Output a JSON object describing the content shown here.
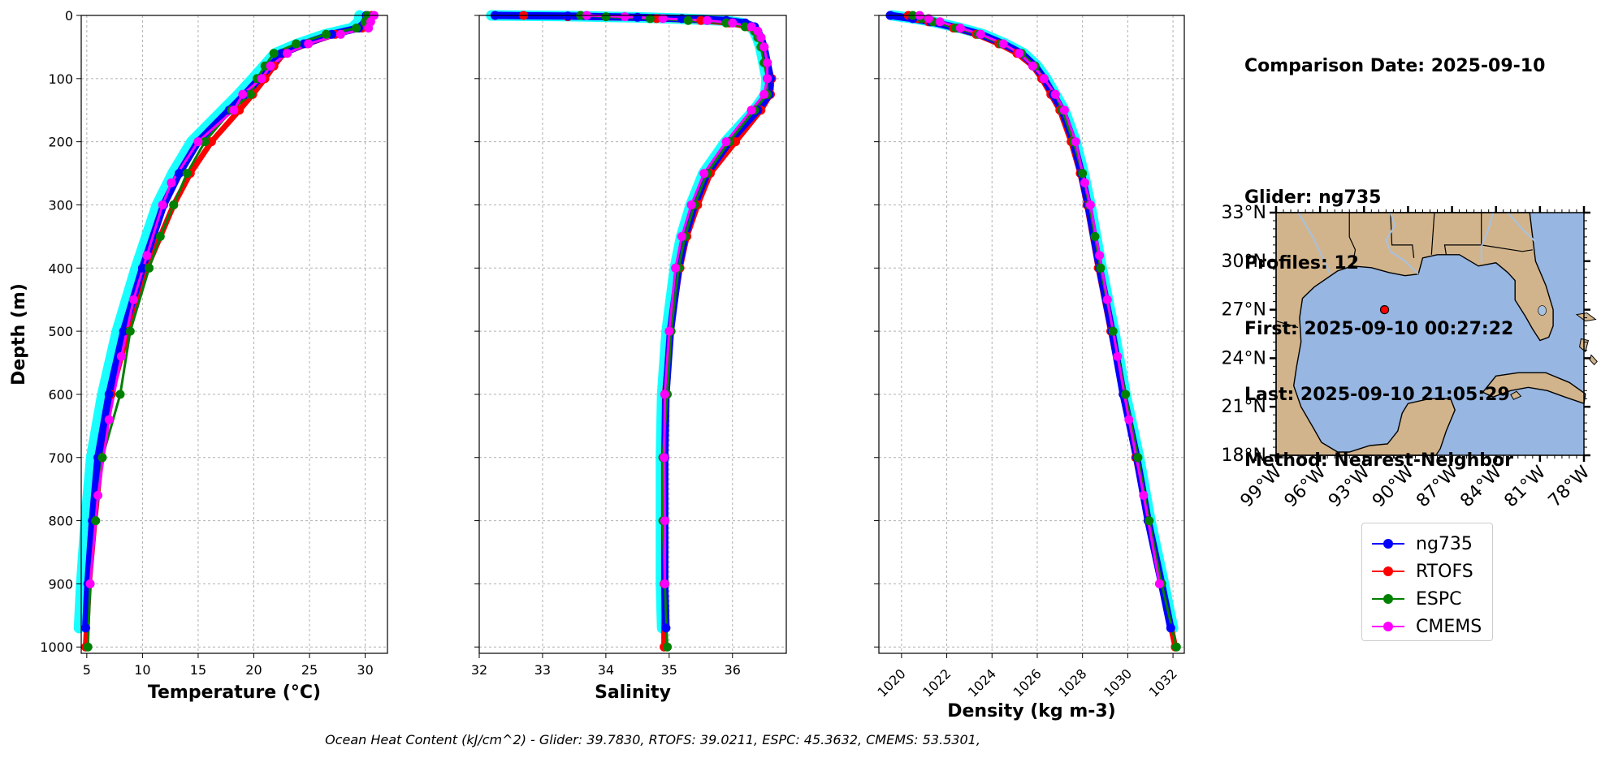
{
  "info": {
    "lines": [
      "Comparison Date: 2025-09-10",
      "",
      "Glider: ng735",
      "Profiles: 12",
      "First: 2025-09-10 00:27:22",
      "Last: 2025-09-10 21:05:29",
      "Method: Nearest-Neighbor"
    ]
  },
  "footnote": "Ocean Heat Content (kJ/cm^2) - Glider: 39.7830,  RTOFS: 39.0211,  ESPC: 45.3632,  CMEMS: 53.5301,",
  "colors": {
    "ng735": "#0000ff",
    "RTOFS": "#ff0000",
    "ESPC": "#008000",
    "CMEMS": "#ff00ff",
    "profiles_envelope": "#00ffff",
    "land": "#d2b48c",
    "ocean": "#97b6e1"
  },
  "legend": [
    "ng735",
    "RTOFS",
    "ESPC",
    "CMEMS"
  ],
  "chart_data": [
    {
      "type": "line",
      "xlabel": "Temperature (°C)",
      "ylabel": "Depth (m)",
      "xlim": [
        4.5,
        32
      ],
      "ylim": [
        1010,
        0
      ],
      "xticks": [
        5,
        10,
        15,
        20,
        25,
        30
      ],
      "yticks": [
        0,
        100,
        200,
        300,
        400,
        500,
        600,
        700,
        800,
        900,
        1000
      ],
      "grid": true,
      "series": [
        {
          "name": "ng735",
          "depth": [
            0,
            10,
            20,
            30,
            45,
            60,
            80,
            100,
            125,
            150,
            200,
            250,
            300,
            400,
            500,
            600,
            700,
            800,
            900,
            970
          ],
          "values": [
            30.1,
            30.0,
            29.4,
            27.0,
            24.5,
            22.5,
            21.5,
            20.5,
            19.2,
            17.8,
            15.0,
            13.3,
            11.9,
            10.0,
            8.3,
            7.0,
            6.0,
            5.5,
            5.1,
            4.9
          ]
        },
        {
          "name": "RTOFS",
          "depth": [
            0,
            10,
            20,
            30,
            45,
            60,
            80,
            100,
            125,
            150,
            200,
            250,
            300,
            400,
            500,
            600,
            700,
            800,
            900,
            1000
          ],
          "values": [
            30.6,
            30.4,
            29.7,
            27.3,
            24.8,
            22.7,
            21.8,
            21.0,
            19.9,
            18.7,
            16.2,
            14.3,
            12.8,
            10.4,
            8.7,
            7.2,
            6.3,
            5.7,
            5.2,
            4.9
          ]
        },
        {
          "name": "ESPC",
          "depth": [
            0,
            10,
            20,
            30,
            45,
            60,
            80,
            100,
            125,
            150,
            200,
            250,
            300,
            350,
            400,
            500,
            600,
            700,
            800,
            900,
            1000
          ],
          "values": [
            30.2,
            30.0,
            29.2,
            26.5,
            23.8,
            21.8,
            21.0,
            20.3,
            19.7,
            18.0,
            15.6,
            14.0,
            12.8,
            11.6,
            10.6,
            8.9,
            8.0,
            6.4,
            5.8,
            5.3,
            5.1
          ]
        },
        {
          "name": "CMEMS",
          "depth": [
            0,
            10,
            20,
            30,
            45,
            60,
            80,
            100,
            125,
            150,
            200,
            265,
            300,
            380,
            450,
            540,
            640,
            760,
            900
          ],
          "values": [
            30.8,
            30.5,
            30.3,
            27.8,
            24.9,
            23.0,
            21.5,
            20.7,
            19.0,
            18.2,
            15.0,
            12.6,
            11.8,
            10.4,
            9.2,
            8.1,
            7.0,
            6.0,
            5.3
          ]
        }
      ]
    },
    {
      "type": "line",
      "xlabel": "Salinity",
      "ylim": [
        1010,
        0
      ],
      "xlim": [
        32,
        36.85
      ],
      "xticks": [
        32,
        33,
        34,
        35,
        36
      ],
      "yticks": [
        0,
        100,
        200,
        300,
        400,
        500,
        600,
        700,
        800,
        900,
        1000
      ],
      "grid": true,
      "series": [
        {
          "name": "ng735",
          "depth": [
            0,
            1,
            3,
            5,
            8,
            12,
            18,
            25,
            35,
            50,
            75,
            100,
            125,
            150,
            200,
            250,
            300,
            350,
            400,
            500,
            600,
            700,
            800,
            900,
            970
          ],
          "values": [
            32.25,
            33.4,
            34.5,
            35.2,
            35.9,
            36.2,
            36.35,
            36.4,
            36.45,
            36.5,
            36.55,
            36.6,
            36.58,
            36.4,
            35.95,
            35.6,
            35.4,
            35.25,
            35.15,
            35.02,
            34.95,
            34.93,
            34.93,
            34.93,
            34.95
          ]
        },
        {
          "name": "RTOFS",
          "depth": [
            0,
            2,
            5,
            8,
            12,
            18,
            25,
            35,
            50,
            75,
            100,
            125,
            150,
            200,
            250,
            300,
            350,
            400,
            500,
            600,
            700,
            800,
            900,
            1000
          ],
          "values": [
            32.7,
            33.4,
            34.8,
            35.5,
            35.95,
            36.25,
            36.35,
            36.45,
            36.5,
            36.55,
            36.62,
            36.6,
            36.45,
            36.05,
            35.65,
            35.45,
            35.28,
            35.17,
            35.02,
            34.93,
            34.92,
            34.92,
            34.92,
            34.92
          ]
        },
        {
          "name": "ESPC",
          "depth": [
            0,
            2,
            5,
            8,
            12,
            18,
            25,
            35,
            50,
            75,
            100,
            125,
            150,
            200,
            250,
            300,
            350,
            400,
            500,
            600,
            700,
            800,
            900,
            1000
          ],
          "values": [
            33.6,
            34.0,
            34.7,
            35.3,
            35.9,
            36.2,
            36.35,
            36.4,
            36.45,
            36.5,
            36.55,
            36.55,
            36.35,
            35.95,
            35.6,
            35.4,
            35.25,
            35.15,
            35.03,
            34.97,
            34.9,
            34.9,
            34.93,
            34.97
          ]
        },
        {
          "name": "CMEMS",
          "depth": [
            0,
            2,
            5,
            8,
            12,
            18,
            25,
            35,
            50,
            75,
            100,
            125,
            150,
            200,
            250,
            300,
            350,
            400,
            500,
            600,
            700,
            800,
            900
          ],
          "values": [
            33.7,
            34.3,
            34.9,
            35.6,
            36.0,
            36.3,
            36.4,
            36.45,
            36.5,
            36.55,
            36.55,
            36.5,
            36.3,
            35.9,
            35.55,
            35.35,
            35.2,
            35.1,
            35.0,
            34.93,
            34.92,
            34.93,
            34.93
          ]
        }
      ]
    },
    {
      "type": "line",
      "xlabel": "Density (kg m-3)",
      "ylim": [
        1010,
        0
      ],
      "xlim": [
        1019,
        1032.5
      ],
      "xticks": [
        1020,
        1022,
        1024,
        1026,
        1028,
        1030,
        1032
      ],
      "yticks": [
        0,
        100,
        200,
        300,
        400,
        500,
        600,
        700,
        800,
        900,
        1000
      ],
      "grid": true,
      "series": [
        {
          "name": "ng735",
          "depth": [
            0,
            5,
            10,
            20,
            30,
            45,
            60,
            80,
            100,
            125,
            150,
            200,
            250,
            300,
            400,
            500,
            600,
            700,
            800,
            900,
            970
          ],
          "values": [
            1019.5,
            1020.5,
            1021.3,
            1022.5,
            1023.5,
            1024.5,
            1025.3,
            1025.9,
            1026.3,
            1026.7,
            1027.1,
            1027.6,
            1027.95,
            1028.25,
            1028.75,
            1029.3,
            1029.8,
            1030.4,
            1030.9,
            1031.5,
            1031.9
          ]
        },
        {
          "name": "RTOFS",
          "depth": [
            0,
            5,
            10,
            20,
            30,
            45,
            60,
            80,
            100,
            125,
            150,
            200,
            250,
            300,
            400,
            500,
            600,
            700,
            800,
            900,
            1000
          ],
          "values": [
            1020.3,
            1020.7,
            1021.2,
            1022.3,
            1023.3,
            1024.3,
            1025.1,
            1025.8,
            1026.2,
            1026.6,
            1027.0,
            1027.5,
            1027.9,
            1028.2,
            1028.7,
            1029.25,
            1029.8,
            1030.35,
            1030.9,
            1031.5,
            1032.1
          ]
        },
        {
          "name": "ESPC",
          "depth": [
            0,
            5,
            10,
            20,
            30,
            45,
            60,
            80,
            100,
            125,
            150,
            200,
            250,
            300,
            350,
            400,
            500,
            600,
            700,
            800,
            900,
            1000
          ],
          "values": [
            1020.5,
            1020.9,
            1021.4,
            1022.4,
            1023.4,
            1024.4,
            1025.3,
            1025.9,
            1026.3,
            1026.8,
            1027.1,
            1027.6,
            1028.0,
            1028.3,
            1028.55,
            1028.8,
            1029.35,
            1029.9,
            1030.45,
            1030.95,
            1031.5,
            1032.15
          ]
        },
        {
          "name": "CMEMS",
          "depth": [
            0,
            5,
            10,
            20,
            30,
            45,
            60,
            80,
            100,
            125,
            150,
            200,
            265,
            300,
            380,
            450,
            540,
            640,
            760,
            900
          ],
          "values": [
            1020.8,
            1021.2,
            1021.7,
            1022.6,
            1023.5,
            1024.5,
            1025.2,
            1025.8,
            1026.3,
            1026.8,
            1027.2,
            1027.7,
            1028.1,
            1028.35,
            1028.75,
            1029.1,
            1029.55,
            1030.05,
            1030.7,
            1031.4
          ]
        }
      ]
    },
    {
      "type": "map",
      "lon_range": [
        -99,
        -78
      ],
      "lat_range": [
        18,
        33
      ],
      "xticks": [
        "99°W",
        "96°W",
        "93°W",
        "90°W",
        "87°W",
        "84°W",
        "81°W",
        "78°W"
      ],
      "yticks": [
        "18°N",
        "21°N",
        "24°N",
        "27°N",
        "30°N",
        "33°N"
      ],
      "xtick_values": [
        -99,
        -96,
        -93,
        -90,
        -87,
        -84,
        -81,
        -78
      ],
      "ytick_values": [
        18,
        21,
        24,
        27,
        30,
        33
      ],
      "glider_position": {
        "lon": -91.6,
        "lat": 27.0
      }
    }
  ]
}
